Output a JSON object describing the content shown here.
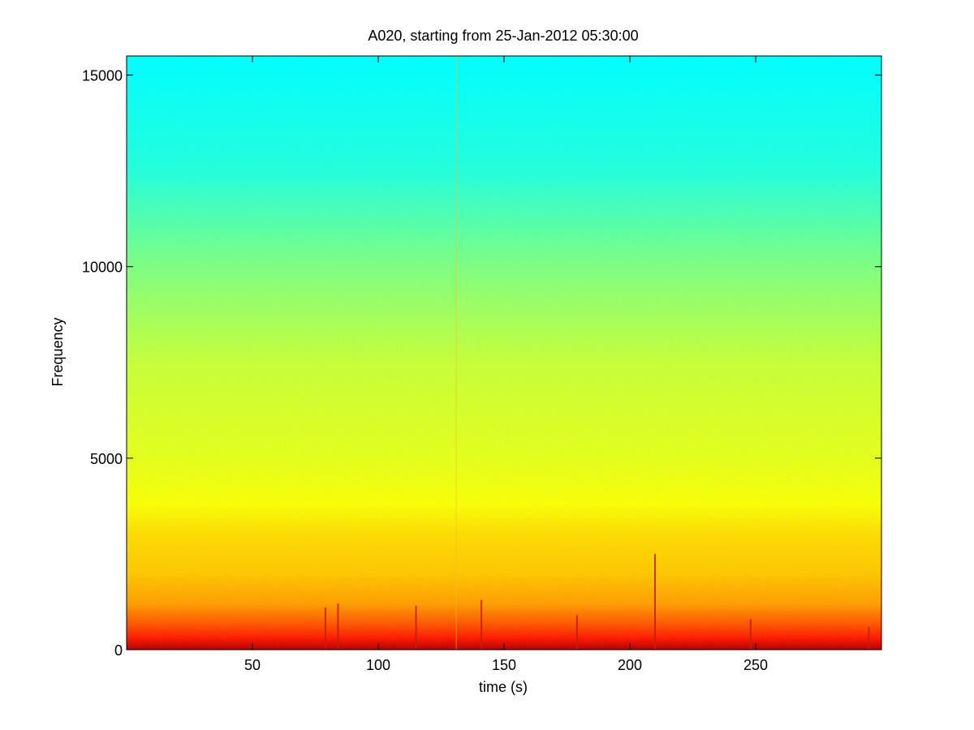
{
  "chart_data": {
    "type": "heatmap",
    "title": "A020, starting from 25-Jan-2012 05:30:00",
    "xlabel": "time (s)",
    "ylabel": "Frequency",
    "xlim": [
      0,
      300
    ],
    "ylim": [
      0,
      15500
    ],
    "x_ticks": [
      50,
      100,
      150,
      200,
      250
    ],
    "y_ticks": [
      0,
      5000,
      10000,
      15000
    ],
    "grid": false,
    "colormap": "jet",
    "colors": {
      "high_freq": "#2ef0d2",
      "mid_freq": "#9af25a",
      "low_freq": "#f2ee28",
      "peak": "#c41e10",
      "axis": "#000000"
    },
    "spectral_profile": [
      {
        "frequency": 15000,
        "level": 0.38
      },
      {
        "frequency": 12500,
        "level": 0.41
      },
      {
        "frequency": 10000,
        "level": 0.5
      },
      {
        "frequency": 7500,
        "level": 0.57
      },
      {
        "frequency": 5000,
        "level": 0.6
      },
      {
        "frequency": 3800,
        "level": 0.62
      },
      {
        "frequency": 3000,
        "level": 0.66
      },
      {
        "frequency": 2000,
        "level": 0.68
      },
      {
        "frequency": 1200,
        "level": 0.72
      },
      {
        "frequency": 600,
        "level": 0.8
      },
      {
        "frequency": 300,
        "level": 0.85
      },
      {
        "frequency": 0,
        "level": 0.95
      }
    ],
    "transients": [
      {
        "time": 79,
        "max_frequency": 1100
      },
      {
        "time": 84,
        "max_frequency": 1200
      },
      {
        "time": 115,
        "max_frequency": 1150
      },
      {
        "time": 131,
        "max_frequency": 15500
      },
      {
        "time": 141,
        "max_frequency": 1300
      },
      {
        "time": 179,
        "max_frequency": 900
      },
      {
        "time": 210,
        "max_frequency": 2500
      },
      {
        "time": 248,
        "max_frequency": 800
      },
      {
        "time": 295,
        "max_frequency": 600
      }
    ]
  }
}
